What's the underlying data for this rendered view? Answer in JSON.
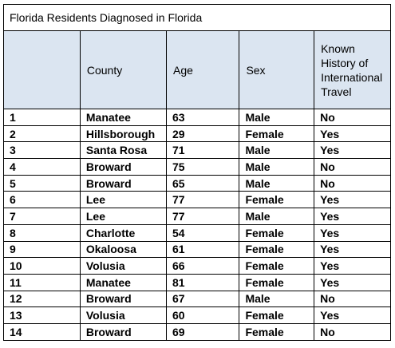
{
  "title": "Florida Residents Diagnosed in Florida",
  "columns": [
    "",
    "County",
    "Age",
    "Sex",
    "Known History of International Travel"
  ],
  "rows": [
    [
      "1",
      "Manatee",
      "63",
      "Male",
      "No"
    ],
    [
      "2",
      "Hillsborough",
      "29",
      "Female",
      "Yes"
    ],
    [
      "3",
      "Santa Rosa",
      "71",
      "Male",
      "Yes"
    ],
    [
      "4",
      "Broward",
      "75",
      "Male",
      "No"
    ],
    [
      "5",
      "Broward",
      "65",
      "Male",
      "No"
    ],
    [
      "6",
      "Lee",
      "77",
      "Female",
      "Yes"
    ],
    [
      "7",
      "Lee",
      "77",
      "Male",
      "Yes"
    ],
    [
      "8",
      "Charlotte",
      "54",
      "Female",
      "Yes"
    ],
    [
      "9",
      "Okaloosa",
      "61",
      "Female",
      "Yes"
    ],
    [
      "10",
      "Volusia",
      "66",
      "Female",
      "Yes"
    ],
    [
      "11",
      "Manatee",
      "81",
      "Female",
      "Yes"
    ],
    [
      "12",
      "Broward",
      "67",
      "Male",
      "No"
    ],
    [
      "13",
      "Volusia",
      "60",
      "Female",
      "Yes"
    ],
    [
      "14",
      "Broward",
      "69",
      "Female",
      "No"
    ]
  ],
  "colors": {
    "header_bg": "#dbe5f1",
    "border": "#000000"
  }
}
